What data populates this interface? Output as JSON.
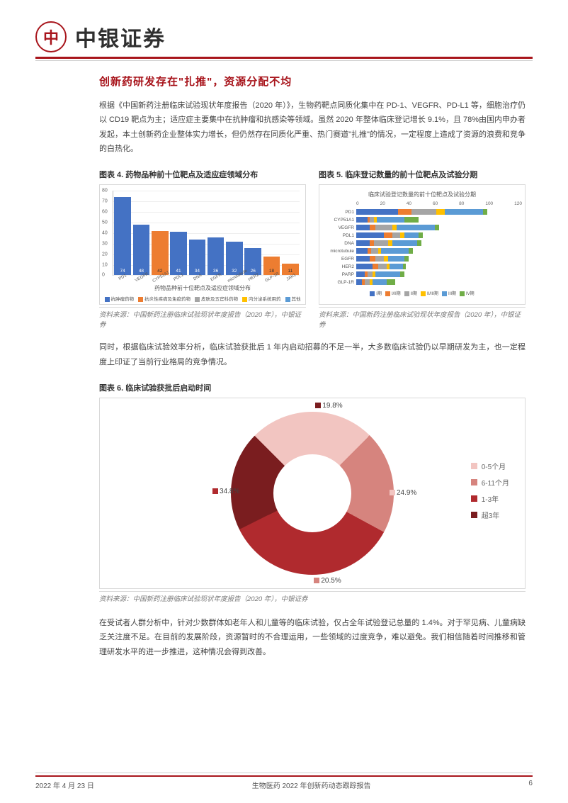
{
  "header": {
    "logo_text": "⌾",
    "company": "中银证券"
  },
  "section_title": "创新药研发存在\"扎推\"，资源分配不均",
  "para1": "根据《中国新药注册临床试验现状年度报告（2020 年）》，生物药靶点同质化集中在 PD-1、VEGFR、PD-L1 等，细胞治疗仍以 CD19 靶点为主；适应症主要集中在抗肿瘤和抗感染等领域。虽然 2020 年整体临床登记增长 9.1%，且 78%由国内申办者发起，本土创新药企业整体实力增长，但仍然存在同质化严重、热门赛道\"扎推\"的情况，一定程度上造成了资源的浪费和竞争的白热化。",
  "chart4": {
    "caption": "图表 4. 药物品种前十位靶点及适应症领域分布",
    "title": "药物品种前十位靶点及适应症领域分布",
    "ymax": 80,
    "ytick_step": 10,
    "grid_color": "#eeeeee",
    "axis_color": "#bbbbbb",
    "label_fontsize": 6.5,
    "title_fontsize": 8,
    "categories": [
      "PD1",
      "VEGFR",
      "CYP51A1",
      "PDL1",
      "DNA",
      "EGFR",
      "microtubule",
      "HER2",
      "GLP-1R",
      "JAK1"
    ],
    "blue": [
      74,
      48,
      0,
      41,
      34,
      36,
      32,
      26,
      0,
      0
    ],
    "orange": [
      0,
      0,
      42,
      0,
      0,
      0,
      0,
      0,
      18,
      11
    ],
    "blue_tops": [
      75,
      52,
      0,
      44,
      40,
      38,
      35,
      33,
      0,
      8
    ],
    "orange_tops": [
      0,
      3,
      45,
      0,
      0,
      0,
      0,
      0,
      20,
      14
    ],
    "bar_color_blue": "#4472c4",
    "bar_color_orange": "#ed7d31",
    "legend": [
      {
        "label": "抗肿瘤药物",
        "color": "#4472c4"
      },
      {
        "label": "抗炎性疾病及免疫药物",
        "color": "#ed7d31"
      },
      {
        "label": "皮肤及五官科药物",
        "color": "#a5a5a5"
      },
      {
        "label": "内分泌系统用药",
        "color": "#ffc000"
      },
      {
        "label": "其他",
        "color": "#5b9bd5"
      }
    ],
    "source": "资料来源：中国新药注册临床试验现状年度报告（2020 年），中银证券"
  },
  "chart5": {
    "caption": "图表 5. 临床登记数量的前十位靶点及试验分期",
    "title": "临床试验登记数量的前十位靶点及试验分期",
    "xmax": 120,
    "xtick_step": 20,
    "label_fontsize": 6.5,
    "title_fontsize": 8,
    "xticks": [
      "0",
      "20",
      "40",
      "60",
      "80",
      "100",
      "120"
    ],
    "rows": [
      {
        "label": "PD1",
        "segs": [
          30,
          10,
          18,
          6,
          28,
          3
        ]
      },
      {
        "label": "CYP51A1",
        "segs": [
          8,
          2,
          3,
          2,
          20,
          10
        ]
      },
      {
        "label": "VEGFR",
        "segs": [
          10,
          4,
          12,
          3,
          28,
          3
        ]
      },
      {
        "label": "PDL1",
        "segs": [
          20,
          6,
          6,
          3,
          10,
          3
        ]
      },
      {
        "label": "DNA",
        "segs": [
          10,
          3,
          10,
          3,
          18,
          3
        ]
      },
      {
        "label": "microtubule",
        "segs": [
          8,
          3,
          5,
          2,
          20,
          3
        ]
      },
      {
        "label": "EGFR",
        "segs": [
          10,
          4,
          6,
          3,
          12,
          3
        ]
      },
      {
        "label": "HER2",
        "segs": [
          12,
          4,
          6,
          2,
          10,
          2
        ]
      },
      {
        "label": "PARP",
        "segs": [
          6,
          2,
          4,
          2,
          18,
          3
        ]
      },
      {
        "label": "GLP-1R",
        "segs": [
          4,
          2,
          4,
          2,
          10,
          6
        ]
      }
    ],
    "seg_colors": [
      "#4472c4",
      "#ed7d31",
      "#a5a5a5",
      "#ffc000",
      "#5b9bd5",
      "#70ad47"
    ],
    "legend": [
      {
        "label": "I期",
        "color": "#4472c4"
      },
      {
        "label": "I/II期",
        "color": "#ed7d31"
      },
      {
        "label": "II期",
        "color": "#a5a5a5"
      },
      {
        "label": "II/III期",
        "color": "#ffc000"
      },
      {
        "label": "III期",
        "color": "#5b9bd5"
      },
      {
        "label": "IV期",
        "color": "#70ad47"
      }
    ],
    "source": "资料来源：中国新药注册临床试验现状年度报告（2020 年），中银证券"
  },
  "para2": "同时，根据临床试验效率分析，临床试验获批后 1 年内启动招募的不足一半，大多数临床试验仍以早期研发为主，也一定程度上印证了当前行业格局的竞争情况。",
  "chart6": {
    "caption": "图表 6. 临床试验获批后启动时间",
    "type": "donut",
    "inner_radius_pct": 48,
    "label_fontsize": 10,
    "slices": [
      {
        "label": "0-5个月",
        "value": 24.9,
        "color": "#f2c5c1",
        "display": "24.9%"
      },
      {
        "label": "6-11个月",
        "value": 20.5,
        "color": "#d6847e",
        "display": "20.5%"
      },
      {
        "label": "1-3年",
        "value": 34.8,
        "color": "#b02a2e",
        "display": "34.8%"
      },
      {
        "label": "超3年",
        "value": 19.8,
        "color": "#7a1d1f",
        "display": "19.8%"
      }
    ],
    "background_color": "#ffffff",
    "source": "资料来源：中国新药注册临床试验现状年度报告（2020 年），中银证券"
  },
  "para3": "在受试者人群分析中，针对少数群体如老年人和儿童等的临床试验，仅占全年试验登记总量的 1.4%。对于罕见病、儿童病缺乏关注度不足。在目前的发展阶段，资源暂时的不合理运用，一些领域的过度竞争，难以避免。我们相信随着时间推移和管理研发水平的进一步推进，这种情况会得到改善。",
  "footer": {
    "date": "2022 年 4 月 23 日",
    "doc": "生物医药 2022 年创新药动态跟踪报告",
    "page": "6"
  }
}
